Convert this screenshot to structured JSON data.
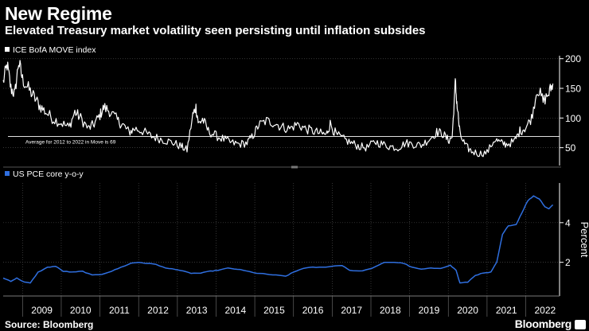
{
  "title": "New Regime",
  "subtitle": "Elevated Treasury market volatility seen persisting until inflation subsides",
  "source": "Source: Bloomberg",
  "brand": "Bloomberg",
  "colors": {
    "background": "#000000",
    "move_line": "#ffffff",
    "pce_line": "#2f6fe0",
    "grid": "#4a4a4a"
  },
  "chart_data": [
    {
      "type": "line",
      "legend": "ICE BofA MOVE index",
      "legend_color": "#ffffff",
      "ylim": [
        20,
        205
      ],
      "yticks": [
        50,
        100,
        150,
        200
      ],
      "xlim": [
        2008.5,
        2022.75
      ],
      "reference_line": {
        "value": 69,
        "label": "Average for 2012 to 2022 in Move is 69"
      },
      "anchors": [
        [
          2008.5,
          160
        ],
        [
          2008.6,
          190
        ],
        [
          2008.7,
          150
        ],
        [
          2008.8,
          140
        ],
        [
          2008.9,
          195
        ],
        [
          2009.0,
          165
        ],
        [
          2009.15,
          150
        ],
        [
          2009.3,
          135
        ],
        [
          2009.45,
          120
        ],
        [
          2009.6,
          110
        ],
        [
          2009.8,
          98
        ],
        [
          2010.0,
          92
        ],
        [
          2010.2,
          84
        ],
        [
          2010.35,
          110
        ],
        [
          2010.5,
          100
        ],
        [
          2010.7,
          82
        ],
        [
          2010.85,
          90
        ],
        [
          2011.0,
          105
        ],
        [
          2011.1,
          118
        ],
        [
          2011.25,
          112
        ],
        [
          2011.45,
          96
        ],
        [
          2011.6,
          88
        ],
        [
          2011.75,
          76
        ],
        [
          2011.9,
          82
        ],
        [
          2012.1,
          78
        ],
        [
          2012.3,
          70
        ],
        [
          2012.5,
          66
        ],
        [
          2012.7,
          62
        ],
        [
          2012.9,
          58
        ],
        [
          2013.1,
          52
        ],
        [
          2013.25,
          46
        ],
        [
          2013.4,
          105
        ],
        [
          2013.48,
          118
        ],
        [
          2013.55,
          90
        ],
        [
          2013.65,
          98
        ],
        [
          2013.8,
          78
        ],
        [
          2014.0,
          70
        ],
        [
          2014.2,
          64
        ],
        [
          2014.4,
          58
        ],
        [
          2014.6,
          56
        ],
        [
          2014.8,
          58
        ],
        [
          2014.95,
          70
        ],
        [
          2015.1,
          88
        ],
        [
          2015.3,
          95
        ],
        [
          2015.5,
          92
        ],
        [
          2015.7,
          85
        ],
        [
          2015.9,
          82
        ],
        [
          2016.1,
          90
        ],
        [
          2016.3,
          82
        ],
        [
          2016.5,
          78
        ],
        [
          2016.7,
          74
        ],
        [
          2016.85,
          72
        ],
        [
          2016.95,
          90
        ],
        [
          2017.1,
          72
        ],
        [
          2017.3,
          64
        ],
        [
          2017.5,
          58
        ],
        [
          2017.7,
          52
        ],
        [
          2017.9,
          50
        ],
        [
          2018.1,
          60
        ],
        [
          2018.3,
          56
        ],
        [
          2018.5,
          52
        ],
        [
          2018.7,
          50
        ],
        [
          2018.9,
          58
        ],
        [
          2019.1,
          56
        ],
        [
          2019.3,
          54
        ],
        [
          2019.5,
          64
        ],
        [
          2019.7,
          76
        ],
        [
          2019.85,
          74
        ],
        [
          2020.0,
          62
        ],
        [
          2020.1,
          68
        ],
        [
          2020.18,
          160
        ],
        [
          2020.23,
          120
        ],
        [
          2020.3,
          72
        ],
        [
          2020.45,
          52
        ],
        [
          2020.6,
          44
        ],
        [
          2020.8,
          40
        ],
        [
          2021.0,
          42
        ],
        [
          2021.2,
          64
        ],
        [
          2021.35,
          58
        ],
        [
          2021.5,
          56
        ],
        [
          2021.7,
          60
        ],
        [
          2021.85,
          78
        ],
        [
          2022.0,
          84
        ],
        [
          2022.15,
          100
        ],
        [
          2022.3,
          150
        ],
        [
          2022.45,
          128
        ],
        [
          2022.6,
          142
        ],
        [
          2022.7,
          158
        ]
      ]
    },
    {
      "type": "line",
      "legend": "US PCE core y-o-y",
      "legend_color": "#2f6fe0",
      "ylabel": "Percent",
      "ylim": [
        0.3,
        6.0
      ],
      "yticks": [
        2,
        4
      ],
      "xlim": [
        2008.5,
        2022.75
      ],
      "x_tick_labels": [
        "2009",
        "2010",
        "2011",
        "2012",
        "2013",
        "2014",
        "2015",
        "2016",
        "2017",
        "2018",
        "2019",
        "2020",
        "2021",
        "2022"
      ],
      "anchors": [
        [
          2008.5,
          1.2
        ],
        [
          2008.7,
          1.05
        ],
        [
          2008.85,
          1.2
        ],
        [
          2009.05,
          1.0
        ],
        [
          2009.2,
          0.95
        ],
        [
          2009.4,
          1.5
        ],
        [
          2009.65,
          1.75
        ],
        [
          2009.85,
          1.8
        ],
        [
          2010.05,
          1.55
        ],
        [
          2010.3,
          1.5
        ],
        [
          2010.55,
          1.55
        ],
        [
          2010.8,
          1.35
        ],
        [
          2011.05,
          1.4
        ],
        [
          2011.3,
          1.55
        ],
        [
          2011.55,
          1.75
        ],
        [
          2011.8,
          1.95
        ],
        [
          2012.0,
          2.0
        ],
        [
          2012.2,
          1.95
        ],
        [
          2012.45,
          1.9
        ],
        [
          2012.7,
          1.7
        ],
        [
          2012.95,
          1.65
        ],
        [
          2013.15,
          1.55
        ],
        [
          2013.35,
          1.45
        ],
        [
          2013.6,
          1.45
        ],
        [
          2013.85,
          1.55
        ],
        [
          2014.05,
          1.6
        ],
        [
          2014.3,
          1.7
        ],
        [
          2014.55,
          1.65
        ],
        [
          2014.8,
          1.55
        ],
        [
          2015.05,
          1.45
        ],
        [
          2015.3,
          1.4
        ],
        [
          2015.55,
          1.35
        ],
        [
          2015.8,
          1.3
        ],
        [
          2016.0,
          1.5
        ],
        [
          2016.25,
          1.7
        ],
        [
          2016.5,
          1.75
        ],
        [
          2016.75,
          1.75
        ],
        [
          2017.0,
          1.8
        ],
        [
          2017.25,
          1.85
        ],
        [
          2017.45,
          1.6
        ],
        [
          2017.7,
          1.55
        ],
        [
          2017.95,
          1.65
        ],
        [
          2018.15,
          1.8
        ],
        [
          2018.35,
          2.0
        ],
        [
          2018.6,
          2.0
        ],
        [
          2018.85,
          1.95
        ],
        [
          2019.05,
          1.75
        ],
        [
          2019.3,
          1.65
        ],
        [
          2019.55,
          1.7
        ],
        [
          2019.8,
          1.7
        ],
        [
          2020.05,
          1.85
        ],
        [
          2020.2,
          1.6
        ],
        [
          2020.3,
          0.95
        ],
        [
          2020.5,
          1.0
        ],
        [
          2020.7,
          1.35
        ],
        [
          2020.9,
          1.45
        ],
        [
          2021.1,
          1.5
        ],
        [
          2021.25,
          2.0
        ],
        [
          2021.4,
          3.4
        ],
        [
          2021.55,
          3.85
        ],
        [
          2021.75,
          3.9
        ],
        [
          2021.9,
          4.5
        ],
        [
          2022.05,
          5.1
        ],
        [
          2022.2,
          5.35
        ],
        [
          2022.35,
          5.2
        ],
        [
          2022.5,
          4.8
        ],
        [
          2022.6,
          4.7
        ],
        [
          2022.7,
          4.9
        ]
      ]
    }
  ]
}
